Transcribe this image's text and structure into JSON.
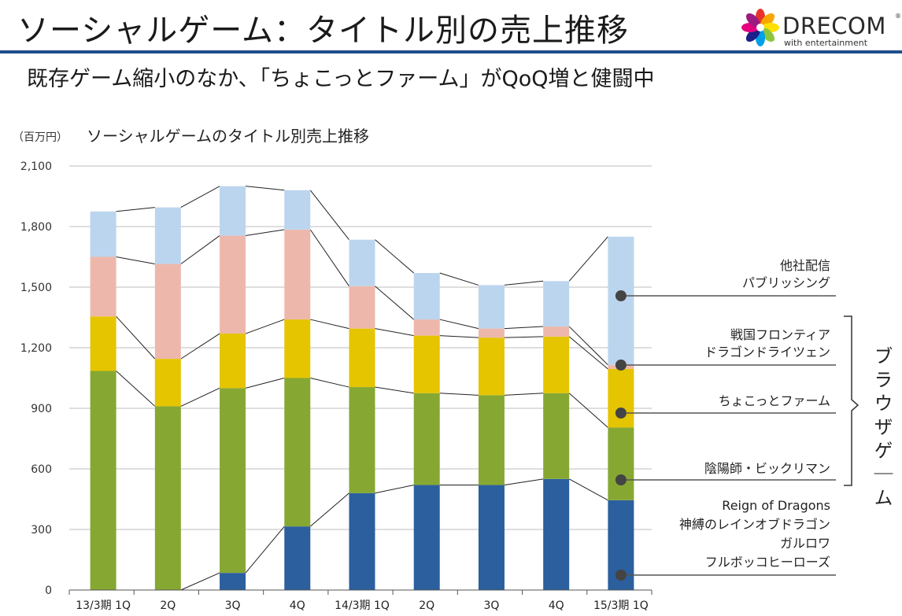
{
  "header": {
    "title": "ソーシャルゲーム：タイトル別の売上推移",
    "subtitle": "既存ゲーム縮小のなか、「ちょこっとファーム」がQoQ増と健闘中",
    "logo_text": "DRECOM",
    "logo_tagline": "with entertainment",
    "logo_reg": "®"
  },
  "chart_data": {
    "type": "bar",
    "stacked": true,
    "unit_label": "（百万円）",
    "title": "ソーシャルゲームのタイトル別売上推移",
    "categories": [
      "13/3期 1Q",
      "2Q",
      "3Q",
      "4Q",
      "14/3期 1Q",
      "2Q",
      "3Q",
      "4Q",
      "15/3期 1Q"
    ],
    "ylim": [
      0,
      2100
    ],
    "yticks": [
      0,
      300,
      600,
      900,
      1200,
      1500,
      1800,
      2100
    ],
    "ytick_labels": [
      "0",
      "300",
      "600",
      "900",
      "1,200",
      "1,500",
      "1,800",
      "2,100"
    ],
    "grid": true,
    "series": [
      {
        "key": "fulbokko",
        "color": "#2b5f9e",
        "values": [
          0,
          0,
          85,
          315,
          480,
          520,
          520,
          550,
          445
        ]
      },
      {
        "key": "onmyoji",
        "color": "#86a833",
        "values": [
          1085,
          910,
          915,
          735,
          525,
          455,
          445,
          425,
          360
        ]
      },
      {
        "key": "chokotto",
        "color": "#e5c400",
        "values": [
          0,
          0,
          0,
          0,
          0,
          0,
          0,
          0,
          290
        ]
      },
      {
        "key": "sengoku",
        "color": "#e5c400",
        "values": [
          270,
          235,
          270,
          290,
          290,
          285,
          285,
          280,
          0
        ]
      },
      {
        "key": "sengoku2",
        "color": "#edb8ab",
        "values": [
          295,
          470,
          485,
          445,
          210,
          80,
          45,
          50,
          20
        ]
      },
      {
        "key": "tasha",
        "color": "#bcd5ee",
        "values": [
          225,
          280,
          245,
          195,
          230,
          230,
          215,
          225,
          635
        ]
      }
    ],
    "legend": [
      {
        "lines": [
          "他社配信",
          "パブリッシング"
        ]
      },
      {
        "lines": [
          "戦国フロンティア",
          "ドラゴンドライツェン"
        ]
      },
      {
        "lines": [
          "ちょこっとファーム"
        ]
      },
      {
        "lines": [
          "陰陽師・ビックリマン"
        ]
      },
      {
        "lines": [
          "Reign of Dragons",
          "神縛のレインオブドラゴン",
          "ガルロワ",
          "フルボッコヒーローズ"
        ]
      }
    ],
    "bracket_label": "ブラウザゲーム"
  }
}
